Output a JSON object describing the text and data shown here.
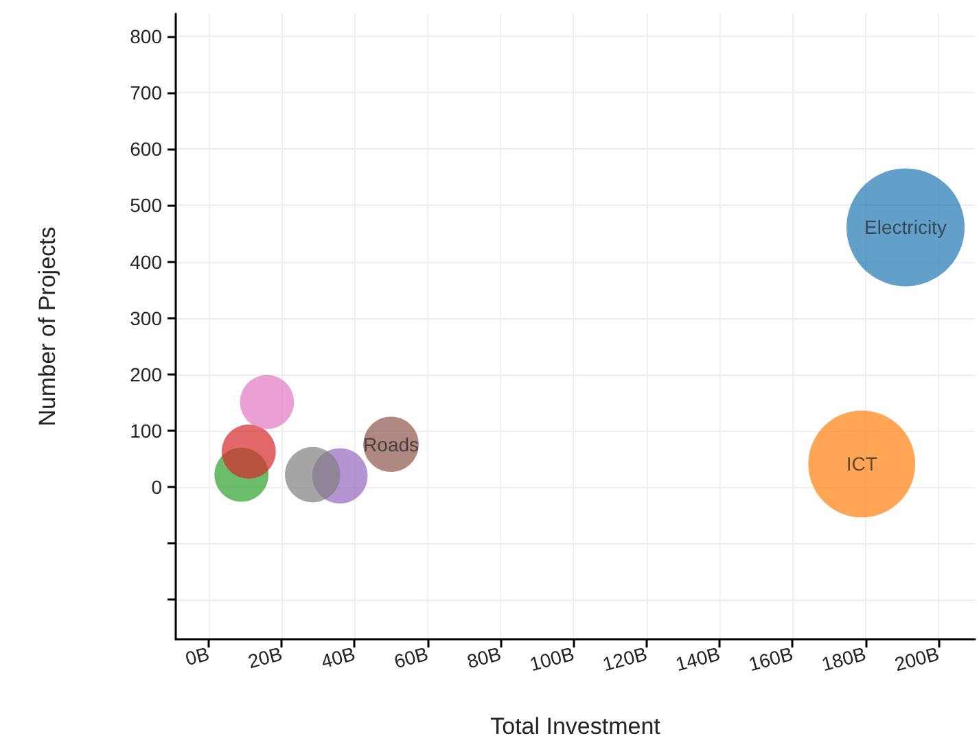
{
  "chart_data": {
    "type": "bubble",
    "xlabel": "Total Investment",
    "ylabel": "Number of Projects",
    "grid": true,
    "xlim": [
      -9,
      210
    ],
    "xticks": [
      {
        "value": 0,
        "label": "0B"
      },
      {
        "value": 20,
        "label": "20B"
      },
      {
        "value": 40,
        "label": "40B"
      },
      {
        "value": 60,
        "label": "60B"
      },
      {
        "value": 80,
        "label": "80B"
      },
      {
        "value": 100,
        "label": "100B"
      },
      {
        "value": 120,
        "label": "120B"
      },
      {
        "value": 140,
        "label": "140B"
      },
      {
        "value": 160,
        "label": "160B"
      },
      {
        "value": 180,
        "label": "180B"
      },
      {
        "value": 200,
        "label": "200B"
      }
    ],
    "ylim": [
      -270,
      840
    ],
    "yticks": [
      {
        "value": -200,
        "label": null
      },
      {
        "value": -100,
        "label": null
      },
      0,
      100,
      200,
      300,
      400,
      500,
      600,
      700,
      800
    ],
    "series": [
      {
        "name": "Electricity",
        "color": "#1f77b4",
        "x": [
          191
        ],
        "values": [
          461
        ],
        "sizes": [
          1
        ]
      },
      {
        "name": "ICT",
        "color": "#ff7f0e",
        "x": [
          179
        ],
        "values": [
          41
        ],
        "sizes": [
          0.82
        ]
      },
      {
        "color": "#2ca02c",
        "x": [
          9
        ],
        "values": [
          22
        ],
        "sizes": [
          0.21
        ]
      },
      {
        "color": "#d62728",
        "x": [
          11
        ],
        "values": [
          63
        ],
        "sizes": [
          0.21
        ]
      },
      {
        "color": "#9467bd",
        "x": [
          36
        ],
        "values": [
          20
        ],
        "sizes": [
          0.22
        ]
      },
      {
        "name": "Roads",
        "color": "#8c564b",
        "x": [
          50
        ],
        "values": [
          76
        ],
        "sizes": [
          0.22
        ]
      },
      {
        "color": "#e377c2",
        "x": [
          16
        ],
        "values": [
          151
        ],
        "sizes": [
          0.21
        ]
      },
      {
        "color": "#7f7f7f",
        "x": [
          28.5
        ],
        "values": [
          22
        ],
        "sizes": [
          0.22
        ]
      }
    ]
  }
}
